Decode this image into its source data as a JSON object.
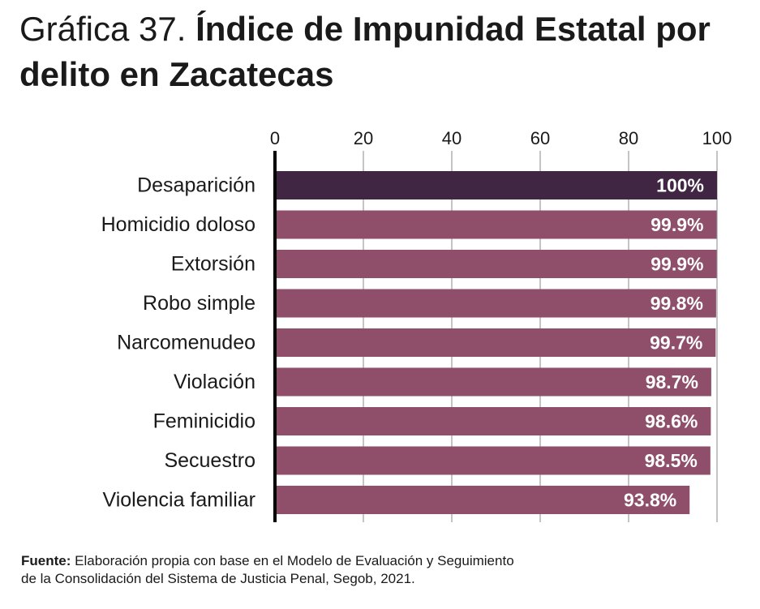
{
  "title": {
    "prefix": "Gráfica 37.",
    "main": "Índice de Impunidad Estatal por delito en Zacatecas"
  },
  "colors": {
    "highlight": "#402643",
    "bar": "#8f4f6b",
    "axis": "#000000",
    "grid": "#888888",
    "label_text": "#ffffff"
  },
  "chart_data": {
    "type": "bar",
    "orientation": "horizontal",
    "categories": [
      "Desaparición",
      "Homicidio doloso",
      "Extorsión",
      "Robo simple",
      "Narcomenudeo",
      "Violación",
      "Feminicidio",
      "Secuestro",
      "Violencia familiar"
    ],
    "values": [
      100,
      99.9,
      99.9,
      99.8,
      99.7,
      98.7,
      98.6,
      98.5,
      93.8
    ],
    "data_labels": [
      "100%",
      "99.9%",
      "99.9%",
      "99.8%",
      "99.7%",
      "98.7%",
      "98.6%",
      "98.5%",
      "93.8%"
    ],
    "xlim": [
      0,
      100
    ],
    "x_ticks": [
      0,
      20,
      40,
      60,
      80,
      100
    ],
    "x_axis_position": "top",
    "highlighted_category": "Desaparición",
    "grid": true,
    "legend": "none"
  },
  "source": {
    "label": "Fuente:",
    "line1": "Elaboración propia con base en el Modelo de Evaluación y Seguimiento",
    "line2": "de la Consolidación del Sistema de Justicia Penal, Segob, 2021."
  }
}
